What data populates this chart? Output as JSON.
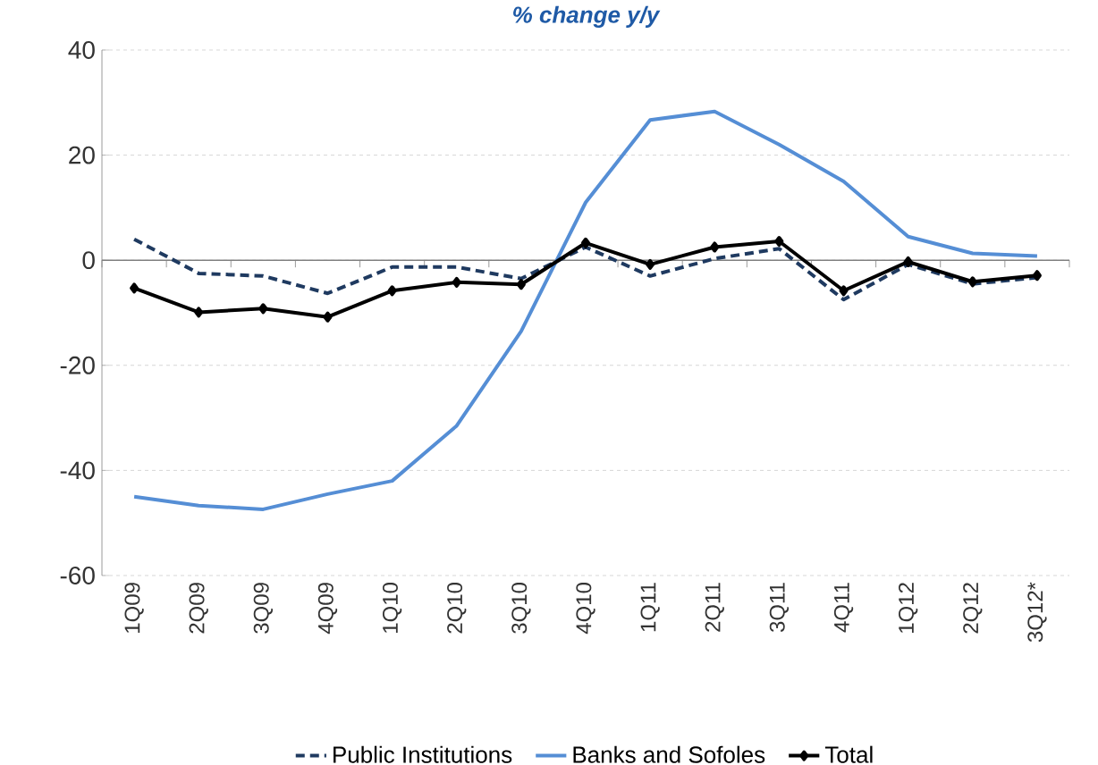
{
  "chart_data": {
    "type": "line",
    "title": "% change y/y",
    "categories": [
      "1Q09",
      "2Q09",
      "3Q09",
      "4Q09",
      "1Q10",
      "2Q10",
      "3Q10",
      "4Q10",
      "1Q11",
      "2Q11",
      "3Q11",
      "4Q11",
      "1Q12",
      "2Q12",
      "3Q12*"
    ],
    "series": [
      {
        "name": "Public Institutions",
        "color": "#1f3a60",
        "line_style": "dashed",
        "marker": "none",
        "values": [
          4,
          -2.5,
          -3,
          -6.3,
          -1.3,
          -1.3,
          -3.5,
          2.5,
          -3,
          0.3,
          2.2,
          -7.5,
          -0.8,
          -4.5,
          -3.3
        ]
      },
      {
        "name": "Banks and Sofoles",
        "color": "#558ed5",
        "line_style": "solid",
        "marker": "none",
        "values": [
          -45,
          -46.7,
          -47.4,
          -44.5,
          -42,
          -31.5,
          -13.5,
          11,
          26.7,
          28.3,
          22,
          15,
          4.5,
          1.3,
          0.8
        ]
      },
      {
        "name": "Total",
        "color": "#000000",
        "line_style": "solid",
        "marker": "diamond",
        "values": [
          -5.3,
          -9.9,
          -9.2,
          -10.8,
          -5.8,
          -4.2,
          -4.6,
          3.3,
          -0.8,
          2.5,
          3.6,
          -5.8,
          -0.3,
          -4.1,
          -2.9
        ]
      }
    ],
    "ylim": [
      -60,
      40
    ],
    "yticks": [
      -60,
      -40,
      -20,
      0,
      20,
      40
    ],
    "grid": "y",
    "legend": "bottom"
  }
}
